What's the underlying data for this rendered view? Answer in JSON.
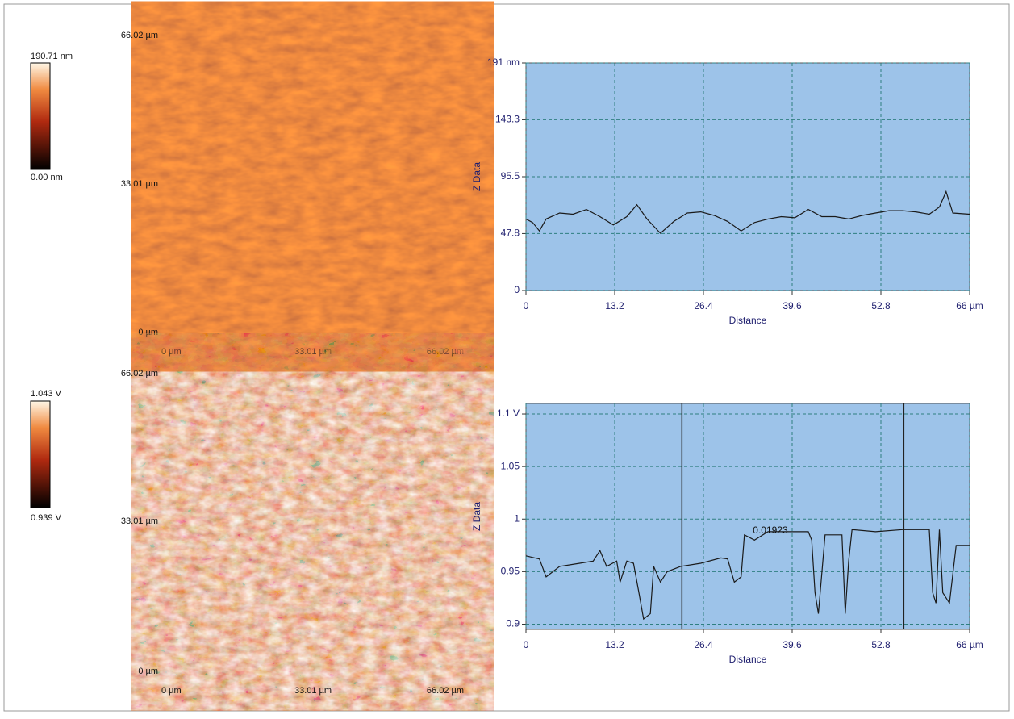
{
  "chart_data": [
    {
      "type": "line",
      "ylabel": "Z Data",
      "xlabel": "Distance",
      "x": [
        0,
        1,
        2,
        3,
        5,
        7,
        9,
        11,
        13,
        15,
        16.5,
        18,
        20,
        22,
        24,
        26,
        28,
        30,
        32,
        34,
        36,
        38,
        40,
        42,
        44,
        46,
        48,
        50,
        52,
        54,
        56,
        58,
        60,
        61.5,
        62.5,
        63.5,
        66
      ],
      "values": [
        60,
        57,
        50,
        60,
        65,
        64,
        68,
        62,
        55,
        62,
        72,
        60,
        48,
        58,
        65,
        66,
        63,
        58,
        50,
        57,
        60,
        62,
        61,
        68,
        62,
        62,
        60,
        63,
        65,
        67,
        67,
        66,
        64,
        70,
        83,
        65,
        64
      ],
      "color": "#1a1a1a",
      "xlim": [
        0,
        66
      ],
      "ylim": [
        0,
        191
      ],
      "xticks": [
        0,
        13.2,
        26.4,
        39.6,
        52.8,
        {
          "value": 66,
          "label": "66 µm"
        }
      ],
      "yticks": [
        0,
        47.8,
        95.5,
        143.3,
        {
          "value": 191,
          "label": "191 nm"
        }
      ],
      "grid": true
    },
    {
      "type": "line",
      "ylabel": "Z Data",
      "xlabel": "Distance",
      "annotation": "0.01923",
      "cursors": [
        23.2,
        56.2
      ],
      "x": [
        0,
        2,
        3,
        5,
        8,
        10,
        11,
        12,
        13.5,
        14,
        15,
        16,
        16.8,
        17.5,
        18.5,
        19,
        20,
        21,
        23,
        26,
        29,
        30,
        31,
        32,
        32.5,
        34,
        36,
        40,
        42,
        42.5,
        43,
        43.5,
        44.5,
        47,
        47.5,
        48,
        48.5,
        52,
        56,
        60,
        60.5,
        61,
        61.5,
        62,
        63,
        64,
        66
      ],
      "values": [
        0.965,
        0.962,
        0.945,
        0.955,
        0.958,
        0.96,
        0.97,
        0.955,
        0.96,
        0.94,
        0.96,
        0.958,
        0.93,
        0.905,
        0.91,
        0.955,
        0.94,
        0.95,
        0.955,
        0.958,
        0.963,
        0.962,
        0.94,
        0.945,
        0.985,
        0.98,
        0.988,
        0.988,
        0.988,
        0.98,
        0.93,
        0.91,
        0.985,
        0.985,
        0.91,
        0.96,
        0.99,
        0.988,
        0.99,
        0.99,
        0.93,
        0.92,
        0.99,
        0.93,
        0.92,
        0.975,
        0.975
      ],
      "color": "#1a1a1a",
      "xlim": [
        0,
        66
      ],
      "ylim": [
        0.895,
        1.11
      ],
      "xticks": [
        0,
        13.2,
        26.4,
        39.6,
        52.8,
        {
          "value": 66,
          "label": "66 µm"
        }
      ],
      "yticks": [
        0.9,
        0.95,
        1,
        1.05,
        {
          "value": 1.1,
          "label": "1.1 V"
        }
      ],
      "grid": true
    }
  ],
  "images": [
    {
      "y_labels": [
        "66.02 µm",
        "33.01 µm",
        "0 µm"
      ],
      "x_labels": [
        "0 µm",
        "33.01 µm",
        "66.02 µm"
      ],
      "colorbar": [
        "190.71 nm",
        "0.00 nm"
      ]
    },
    {
      "y_labels": [
        "66.02 µm",
        "33.01 µm",
        "0 µm"
      ],
      "x_labels": [
        "0 µm",
        "33.01 µm",
        "66.02 µm"
      ],
      "colorbar": [
        "1.043 V",
        "0.939 V"
      ]
    }
  ]
}
